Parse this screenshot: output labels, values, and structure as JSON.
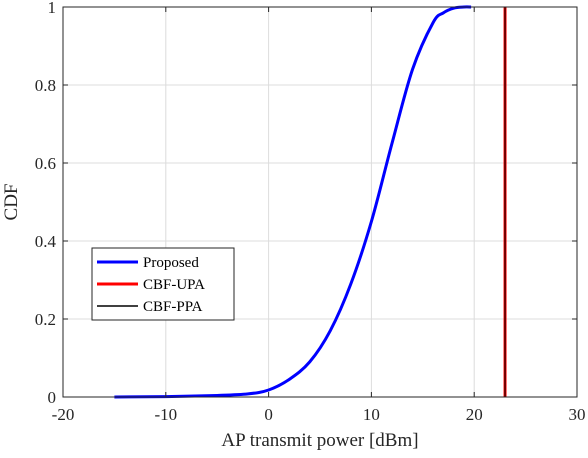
{
  "chart_data": {
    "type": "line",
    "xlabel": "AP transmit power [dBm]",
    "ylabel": "CDF",
    "xlim": [
      -20,
      30
    ],
    "ylim": [
      0,
      1
    ],
    "xticks": [
      -20,
      -10,
      0,
      10,
      20,
      30
    ],
    "yticks": [
      0,
      0.2,
      0.4,
      0.6,
      0.8,
      1
    ],
    "xtick_labels": [
      "-20",
      "-10",
      "0",
      "10",
      "20",
      "30"
    ],
    "ytick_labels": [
      "0",
      "0.2",
      "0.4",
      "0.6",
      "0.8",
      "1"
    ],
    "grid": true,
    "legend_position": "lower-left",
    "series": [
      {
        "name": "Proposed",
        "color": "#0000ff",
        "x": [
          -15,
          -10,
          -5,
          -2,
          0,
          2,
          4,
          6,
          8,
          10,
          12,
          14,
          16,
          17,
          18,
          19,
          19.7
        ],
        "y": [
          0,
          0.001,
          0.004,
          0.008,
          0.018,
          0.045,
          0.09,
          0.17,
          0.29,
          0.45,
          0.65,
          0.84,
          0.96,
          0.985,
          0.997,
          1.0,
          1.0
        ]
      },
      {
        "name": "CBF-UPA",
        "color": "#ff0000",
        "x": [
          23,
          23
        ],
        "y": [
          0,
          1
        ]
      },
      {
        "name": "CBF-PPA",
        "color": "#000000",
        "x": [
          23,
          23
        ],
        "y": [
          0,
          1
        ]
      }
    ]
  }
}
